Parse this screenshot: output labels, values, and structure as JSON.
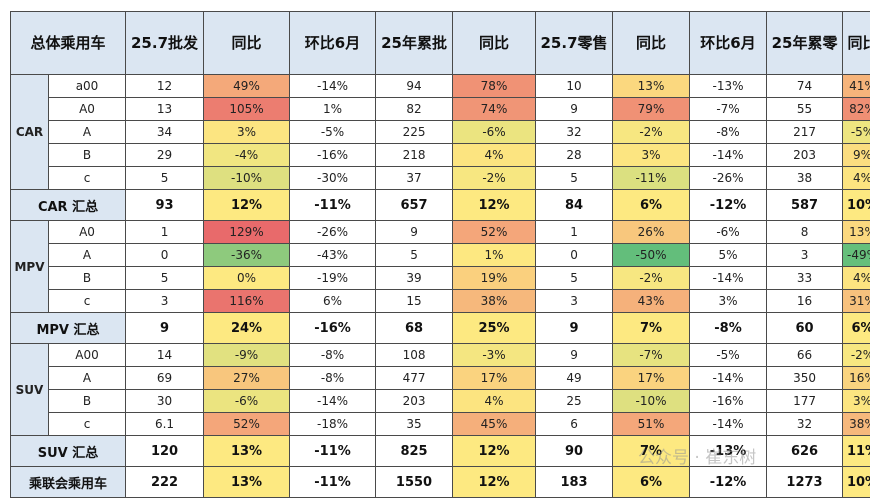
{
  "header": [
    "总体乘用车",
    "25.7批发",
    "同比",
    "环比6月",
    "25年累批",
    "同比",
    "25.7零售",
    "同比",
    "环比6月",
    "25年累零",
    "同比"
  ],
  "groups": [
    {
      "label": "CAR",
      "rows": [
        [
          "a00",
          "12",
          "49%",
          "-14%",
          "94",
          "78%",
          "10",
          "13%",
          "-13%",
          "74",
          "41%"
        ],
        [
          "A0",
          "13",
          "105%",
          "1%",
          "82",
          "74%",
          "9",
          "79%",
          "-7%",
          "55",
          "82%"
        ],
        [
          "A",
          "34",
          "3%",
          "-5%",
          "225",
          "-6%",
          "32",
          "-2%",
          "-8%",
          "217",
          "-5%"
        ],
        [
          "B",
          "29",
          "-4%",
          "-16%",
          "218",
          "4%",
          "28",
          "3%",
          "-14%",
          "203",
          "9%"
        ],
        [
          "c",
          "5",
          "-10%",
          "-30%",
          "37",
          "-2%",
          "5",
          "-11%",
          "-26%",
          "38",
          "4%"
        ]
      ],
      "summary": [
        "CAR 汇总",
        "93",
        "12%",
        "-11%",
        "657",
        "12%",
        "84",
        "6%",
        "-12%",
        "587",
        "10%"
      ]
    },
    {
      "label": "MPV",
      "rows": [
        [
          "A0",
          "1",
          "129%",
          "-26%",
          "9",
          "52%",
          "1",
          "26%",
          "-6%",
          "8",
          "13%"
        ],
        [
          "A",
          "0",
          "-36%",
          "-43%",
          "5",
          "1%",
          "0",
          "-50%",
          "5%",
          "3",
          "-49%"
        ],
        [
          "B",
          "5",
          "0%",
          "-19%",
          "39",
          "19%",
          "5",
          "-2%",
          "-14%",
          "33",
          "4%"
        ],
        [
          "c",
          "3",
          "116%",
          "6%",
          "15",
          "38%",
          "3",
          "43%",
          "3%",
          "16",
          "31%"
        ]
      ],
      "summary": [
        "MPV 汇总",
        "9",
        "24%",
        "-16%",
        "68",
        "25%",
        "9",
        "7%",
        "-8%",
        "60",
        "6%"
      ]
    },
    {
      "label": "SUV",
      "rows": [
        [
          "A00",
          "14",
          "-9%",
          "-8%",
          "108",
          "-3%",
          "9",
          "-7%",
          "-5%",
          "66",
          "-2%"
        ],
        [
          "A",
          "69",
          "27%",
          "-8%",
          "477",
          "17%",
          "49",
          "17%",
          "-14%",
          "350",
          "16%"
        ],
        [
          "B",
          "30",
          "-6%",
          "-14%",
          "203",
          "4%",
          "25",
          "-10%",
          "-16%",
          "177",
          "3%"
        ],
        [
          "c",
          "6.1",
          "52%",
          "-18%",
          "35",
          "45%",
          "6",
          "51%",
          "-14%",
          "32",
          "38%"
        ]
      ],
      "summary": [
        "SUV 汇总",
        "120",
        "13%",
        "-11%",
        "825",
        "12%",
        "90",
        "7%",
        "-13%",
        "626",
        "11%"
      ]
    }
  ],
  "total": [
    "乘联会乘用车",
    "222",
    "13%",
    "-11%",
    "1550",
    "12%",
    "183",
    "6%",
    "-12%",
    "1273",
    "10%"
  ],
  "watermark": "公众号 · 崔东树",
  "colors": {
    "text_red": "#d4242b",
    "scale_red": "#e8696b",
    "scale_orange": "#f4a87a",
    "scale_yellow": "#fde981",
    "scale_green": "#63be7b",
    "header_bg": "#dbe6f2"
  }
}
